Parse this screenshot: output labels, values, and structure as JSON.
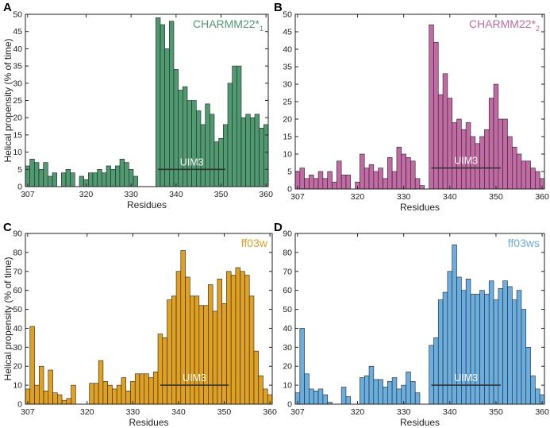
{
  "figure": {
    "shared_ylabel": "Helical propensity (% of time)"
  },
  "chart_data": [
    {
      "type": "bar",
      "panel_label": "A",
      "legend": "CHARMM22*",
      "legend_sub": "1",
      "color": "#4f9a70",
      "xlabel": "Residues",
      "ylabel": "Helical propensity (% of time)",
      "xlim": [
        306.5,
        360.5
      ],
      "ylim": [
        0,
        50
      ],
      "xticks": [
        307,
        320,
        330,
        340,
        350,
        360
      ],
      "yticks": [
        0,
        5,
        10,
        15,
        20,
        25,
        30,
        35,
        40,
        45,
        50
      ],
      "x_start": 307,
      "values": [
        6,
        8,
        7,
        5,
        7,
        3,
        4,
        0,
        4,
        5,
        4,
        0,
        3,
        2,
        4,
        4,
        5,
        4,
        6,
        5,
        6,
        8,
        7,
        5,
        3,
        0,
        0,
        0,
        0,
        49,
        47,
        40,
        48,
        34,
        28,
        29,
        25,
        25,
        22,
        18,
        24,
        21,
        13,
        14,
        18,
        30,
        35,
        35,
        20,
        21,
        20,
        21,
        17,
        18
      ],
      "annotation": {
        "label": "UIM3",
        "x_start": 336,
        "x_end": 351,
        "y": 5
      }
    },
    {
      "type": "bar",
      "panel_label": "B",
      "legend": "CHARMM22*",
      "legend_sub": "2",
      "color": "#c26aa3",
      "xlabel": "Residues",
      "ylabel": "",
      "xlim": [
        306.5,
        360.5
      ],
      "ylim": [
        0,
        50
      ],
      "xticks": [
        307,
        320,
        330,
        340,
        350,
        360
      ],
      "yticks": [
        0,
        5,
        10,
        15,
        20,
        25,
        30,
        35,
        40,
        45,
        50
      ],
      "x_start": 307,
      "values": [
        5,
        6,
        3,
        4,
        3,
        5,
        3,
        5,
        2,
        8,
        4,
        4,
        0,
        2,
        10,
        6,
        7,
        5,
        6,
        3,
        9,
        5,
        12,
        10,
        9,
        8,
        3,
        1,
        0,
        47,
        42,
        27,
        33,
        26,
        19,
        20,
        17,
        19,
        15,
        13,
        15,
        17,
        26,
        30,
        20,
        20,
        15,
        12,
        10,
        8,
        8,
        6,
        5,
        3
      ],
      "annotation": {
        "label": "UIM3",
        "x_start": 336,
        "x_end": 351,
        "y": 6
      }
    },
    {
      "type": "bar",
      "panel_label": "C",
      "legend": "ff03w",
      "legend_sub": "",
      "color": "#e0a020",
      "xlabel": "Residues",
      "ylabel": "Helical propensity (% of time)",
      "xlim": [
        306.5,
        360.5
      ],
      "ylim": [
        0,
        90
      ],
      "xticks": [
        307,
        320,
        330,
        340,
        350,
        360
      ],
      "yticks": [
        0,
        10,
        20,
        30,
        40,
        50,
        60,
        70,
        80,
        90
      ],
      "x_start": 307,
      "values": [
        8,
        41,
        10,
        20,
        7,
        18,
        6,
        5,
        2,
        3,
        10,
        0,
        0,
        0,
        11,
        11,
        23,
        12,
        10,
        8,
        10,
        14,
        7,
        12,
        16,
        16,
        16,
        14,
        17,
        37,
        35,
        55,
        57,
        70,
        81,
        67,
        57,
        57,
        52,
        52,
        63,
        49,
        66,
        53,
        70,
        68,
        72,
        70,
        68,
        57,
        28,
        15,
        8,
        5
      ],
      "annotation": {
        "label": "UIM3",
        "x_start": 336,
        "x_end": 351,
        "y": 10
      }
    },
    {
      "type": "bar",
      "panel_label": "D",
      "legend": "ff03ws",
      "legend_sub": "",
      "color": "#6aaee0",
      "xlabel": "Residues",
      "ylabel": "",
      "xlim": [
        306.5,
        360.5
      ],
      "ylim": [
        0,
        90
      ],
      "xticks": [
        307,
        320,
        330,
        340,
        350,
        360
      ],
      "yticks": [
        0,
        10,
        20,
        30,
        40,
        50,
        60,
        70,
        80,
        90
      ],
      "x_start": 307,
      "values": [
        6,
        40,
        16,
        8,
        7,
        8,
        5,
        1,
        0,
        0,
        9,
        4,
        0,
        0,
        14,
        15,
        20,
        13,
        13,
        9,
        12,
        14,
        8,
        10,
        17,
        12,
        6,
        0,
        0,
        31,
        35,
        55,
        59,
        70,
        84,
        67,
        60,
        66,
        58,
        58,
        60,
        58,
        65,
        55,
        61,
        65,
        62,
        55,
        60,
        50,
        30,
        15,
        8,
        5
      ],
      "annotation": {
        "label": "UIM3",
        "x_start": 336,
        "x_end": 351,
        "y": 10
      }
    }
  ]
}
